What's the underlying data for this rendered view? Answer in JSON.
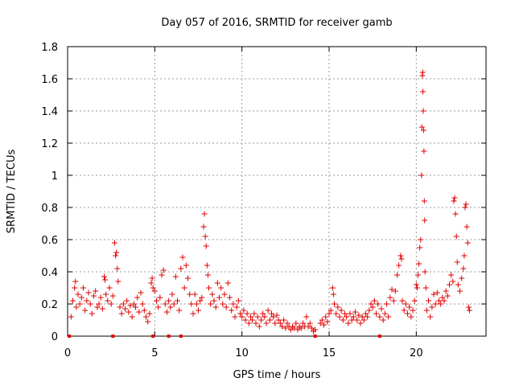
{
  "chart_data": {
    "type": "scatter",
    "title": "Day 057 of 2016, SRMTID for receiver gamb",
    "xlabel": "GPS time / hours",
    "ylabel": "SRMTID / TECUs",
    "xlim": [
      0,
      24
    ],
    "ylim": [
      0,
      1.8
    ],
    "xticks": [
      0,
      5,
      10,
      15,
      20
    ],
    "yticks": [
      0,
      0.2,
      0.4,
      0.6,
      0.8,
      1,
      1.2,
      1.4,
      1.6,
      1.8
    ],
    "xtick_labels": [
      "0",
      "5",
      "10",
      "15",
      "20"
    ],
    "ytick_labels": [
      "0",
      "0.2",
      "0.4",
      "0.6",
      "0.8",
      "1",
      "1.2",
      "1.4",
      "1.6",
      "1.8"
    ],
    "grid": true,
    "series_color": "#e00000",
    "marker": "plus",
    "zero_markers_x": [
      0.1,
      2.6,
      4.9,
      5.8,
      6.5,
      14.2,
      17.9
    ],
    "points": [
      [
        0.2,
        0.12
      ],
      [
        0.3,
        0.22
      ],
      [
        0.4,
        0.3
      ],
      [
        0.45,
        0.34
      ],
      [
        0.5,
        0.18
      ],
      [
        0.6,
        0.26
      ],
      [
        0.7,
        0.2
      ],
      [
        0.8,
        0.24
      ],
      [
        0.9,
        0.3
      ],
      [
        1.0,
        0.16
      ],
      [
        1.1,
        0.22
      ],
      [
        1.2,
        0.27
      ],
      [
        1.3,
        0.2
      ],
      [
        1.4,
        0.14
      ],
      [
        1.5,
        0.25
      ],
      [
        1.6,
        0.28
      ],
      [
        1.7,
        0.18
      ],
      [
        1.8,
        0.2
      ],
      [
        1.9,
        0.24
      ],
      [
        2.0,
        0.17
      ],
      [
        2.1,
        0.37
      ],
      [
        2.15,
        0.35
      ],
      [
        2.2,
        0.26
      ],
      [
        2.3,
        0.22
      ],
      [
        2.4,
        0.3
      ],
      [
        2.5,
        0.2
      ],
      [
        2.6,
        0.25
      ],
      [
        2.7,
        0.58
      ],
      [
        2.75,
        0.5
      ],
      [
        2.8,
        0.52
      ],
      [
        2.85,
        0.42
      ],
      [
        2.9,
        0.34
      ],
      [
        3.0,
        0.18
      ],
      [
        3.1,
        0.14
      ],
      [
        3.2,
        0.2
      ],
      [
        3.3,
        0.17
      ],
      [
        3.4,
        0.22
      ],
      [
        3.5,
        0.15
      ],
      [
        3.6,
        0.19
      ],
      [
        3.7,
        0.12
      ],
      [
        3.8,
        0.2
      ],
      [
        3.9,
        0.18
      ],
      [
        4.0,
        0.24
      ],
      [
        4.1,
        0.15
      ],
      [
        4.2,
        0.27
      ],
      [
        4.3,
        0.2
      ],
      [
        4.4,
        0.16
      ],
      [
        4.5,
        0.12
      ],
      [
        4.6,
        0.09
      ],
      [
        4.7,
        0.14
      ],
      [
        4.8,
        0.33
      ],
      [
        4.85,
        0.36
      ],
      [
        4.9,
        0.3
      ],
      [
        5.0,
        0.28
      ],
      [
        5.1,
        0.22
      ],
      [
        5.2,
        0.18
      ],
      [
        5.3,
        0.24
      ],
      [
        5.4,
        0.38
      ],
      [
        5.5,
        0.41
      ],
      [
        5.6,
        0.2
      ],
      [
        5.7,
        0.15
      ],
      [
        5.8,
        0.22
      ],
      [
        5.9,
        0.18
      ],
      [
        6.0,
        0.26
      ],
      [
        6.1,
        0.2
      ],
      [
        6.2,
        0.37
      ],
      [
        6.3,
        0.22
      ],
      [
        6.4,
        0.16
      ],
      [
        6.5,
        0.42
      ],
      [
        6.6,
        0.49
      ],
      [
        6.7,
        0.3
      ],
      [
        6.8,
        0.44
      ],
      [
        6.9,
        0.36
      ],
      [
        7.0,
        0.26
      ],
      [
        7.1,
        0.2
      ],
      [
        7.2,
        0.14
      ],
      [
        7.3,
        0.26
      ],
      [
        7.4,
        0.2
      ],
      [
        7.5,
        0.16
      ],
      [
        7.6,
        0.22
      ],
      [
        7.7,
        0.24
      ],
      [
        7.8,
        0.68
      ],
      [
        7.85,
        0.76
      ],
      [
        7.9,
        0.62
      ],
      [
        7.95,
        0.56
      ],
      [
        8.0,
        0.44
      ],
      [
        8.05,
        0.38
      ],
      [
        8.1,
        0.3
      ],
      [
        8.2,
        0.2
      ],
      [
        8.3,
        0.26
      ],
      [
        8.4,
        0.22
      ],
      [
        8.5,
        0.18
      ],
      [
        8.6,
        0.33
      ],
      [
        8.7,
        0.24
      ],
      [
        8.8,
        0.3
      ],
      [
        8.9,
        0.2
      ],
      [
        9.0,
        0.26
      ],
      [
        9.1,
        0.18
      ],
      [
        9.2,
        0.33
      ],
      [
        9.3,
        0.24
      ],
      [
        9.4,
        0.16
      ],
      [
        9.5,
        0.2
      ],
      [
        9.6,
        0.12
      ],
      [
        9.7,
        0.18
      ],
      [
        9.8,
        0.22
      ],
      [
        9.9,
        0.14
      ],
      [
        10.0,
        0.12
      ],
      [
        10.1,
        0.16
      ],
      [
        10.2,
        0.1
      ],
      [
        10.3,
        0.14
      ],
      [
        10.4,
        0.08
      ],
      [
        10.5,
        0.12
      ],
      [
        10.6,
        0.1
      ],
      [
        10.7,
        0.14
      ],
      [
        10.8,
        0.08
      ],
      [
        10.9,
        0.12
      ],
      [
        11.0,
        0.06
      ],
      [
        11.1,
        0.1
      ],
      [
        11.2,
        0.14
      ],
      [
        11.3,
        0.12
      ],
      [
        11.4,
        0.08
      ],
      [
        11.5,
        0.16
      ],
      [
        11.6,
        0.1
      ],
      [
        11.7,
        0.14
      ],
      [
        11.8,
        0.12
      ],
      [
        11.9,
        0.08
      ],
      [
        12.0,
        0.13
      ],
      [
        12.1,
        0.1
      ],
      [
        12.2,
        0.08
      ],
      [
        12.3,
        0.06
      ],
      [
        12.4,
        0.1
      ],
      [
        12.5,
        0.05
      ],
      [
        12.6,
        0.08
      ],
      [
        12.7,
        0.06
      ],
      [
        12.8,
        0.04
      ],
      [
        12.9,
        0.06
      ],
      [
        13.0,
        0.05
      ],
      [
        13.1,
        0.08
      ],
      [
        13.2,
        0.04
      ],
      [
        13.3,
        0.06
      ],
      [
        13.4,
        0.05
      ],
      [
        13.5,
        0.08
      ],
      [
        13.6,
        0.06
      ],
      [
        13.7,
        0.12
      ],
      [
        13.8,
        0.06
      ],
      [
        13.9,
        0.08
      ],
      [
        14.0,
        0.05
      ],
      [
        14.1,
        0.03
      ],
      [
        14.2,
        0.04
      ],
      [
        14.5,
        0.08
      ],
      [
        14.6,
        0.1
      ],
      [
        14.7,
        0.07
      ],
      [
        14.8,
        0.12
      ],
      [
        14.9,
        0.09
      ],
      [
        15.0,
        0.14
      ],
      [
        15.1,
        0.16
      ],
      [
        15.2,
        0.3
      ],
      [
        15.25,
        0.26
      ],
      [
        15.3,
        0.2
      ],
      [
        15.4,
        0.14
      ],
      [
        15.5,
        0.18
      ],
      [
        15.6,
        0.12
      ],
      [
        15.7,
        0.16
      ],
      [
        15.8,
        0.1
      ],
      [
        15.9,
        0.14
      ],
      [
        16.0,
        0.12
      ],
      [
        16.1,
        0.08
      ],
      [
        16.2,
        0.14
      ],
      [
        16.3,
        0.1
      ],
      [
        16.4,
        0.12
      ],
      [
        16.5,
        0.15
      ],
      [
        16.6,
        0.1
      ],
      [
        16.7,
        0.13
      ],
      [
        16.8,
        0.08
      ],
      [
        16.9,
        0.12
      ],
      [
        17.0,
        0.1
      ],
      [
        17.1,
        0.14
      ],
      [
        17.2,
        0.12
      ],
      [
        17.3,
        0.16
      ],
      [
        17.4,
        0.2
      ],
      [
        17.5,
        0.18
      ],
      [
        17.6,
        0.22
      ],
      [
        17.7,
        0.14
      ],
      [
        17.8,
        0.2
      ],
      [
        17.9,
        0.12
      ],
      [
        18.0,
        0.17
      ],
      [
        18.1,
        0.1
      ],
      [
        18.2,
        0.14
      ],
      [
        18.3,
        0.2
      ],
      [
        18.4,
        0.12
      ],
      [
        18.5,
        0.24
      ],
      [
        18.6,
        0.29
      ],
      [
        18.7,
        0.22
      ],
      [
        18.8,
        0.28
      ],
      [
        18.9,
        0.38
      ],
      [
        19.0,
        0.44
      ],
      [
        19.1,
        0.5
      ],
      [
        19.15,
        0.48
      ],
      [
        19.2,
        0.22
      ],
      [
        19.3,
        0.16
      ],
      [
        19.4,
        0.2
      ],
      [
        19.5,
        0.14
      ],
      [
        19.6,
        0.18
      ],
      [
        19.7,
        0.12
      ],
      [
        19.8,
        0.16
      ],
      [
        19.9,
        0.22
      ],
      [
        20.0,
        0.32
      ],
      [
        20.05,
        0.3
      ],
      [
        20.1,
        0.38
      ],
      [
        20.15,
        0.45
      ],
      [
        20.2,
        0.55
      ],
      [
        20.25,
        0.6
      ],
      [
        20.3,
        1.0
      ],
      [
        20.32,
        1.3
      ],
      [
        20.35,
        1.62
      ],
      [
        20.37,
        1.64
      ],
      [
        20.38,
        1.52
      ],
      [
        20.4,
        1.4
      ],
      [
        20.42,
        1.28
      ],
      [
        20.44,
        1.15
      ],
      [
        20.46,
        0.84
      ],
      [
        20.48,
        0.72
      ],
      [
        20.5,
        0.4
      ],
      [
        20.55,
        0.3
      ],
      [
        20.6,
        0.16
      ],
      [
        20.7,
        0.22
      ],
      [
        20.8,
        0.12
      ],
      [
        20.9,
        0.18
      ],
      [
        21.0,
        0.26
      ],
      [
        21.1,
        0.2
      ],
      [
        21.2,
        0.27
      ],
      [
        21.3,
        0.22
      ],
      [
        21.4,
        0.2
      ],
      [
        21.5,
        0.24
      ],
      [
        21.6,
        0.22
      ],
      [
        21.7,
        0.28
      ],
      [
        21.8,
        0.25
      ],
      [
        21.9,
        0.32
      ],
      [
        22.0,
        0.38
      ],
      [
        22.1,
        0.34
      ],
      [
        22.15,
        0.84
      ],
      [
        22.2,
        0.86
      ],
      [
        22.25,
        0.76
      ],
      [
        22.3,
        0.62
      ],
      [
        22.35,
        0.46
      ],
      [
        22.4,
        0.32
      ],
      [
        22.5,
        0.28
      ],
      [
        22.6,
        0.36
      ],
      [
        22.7,
        0.42
      ],
      [
        22.75,
        0.5
      ],
      [
        22.8,
        0.8
      ],
      [
        22.85,
        0.82
      ],
      [
        22.9,
        0.68
      ],
      [
        22.95,
        0.58
      ],
      [
        23.0,
        0.18
      ],
      [
        23.05,
        0.16
      ]
    ]
  }
}
